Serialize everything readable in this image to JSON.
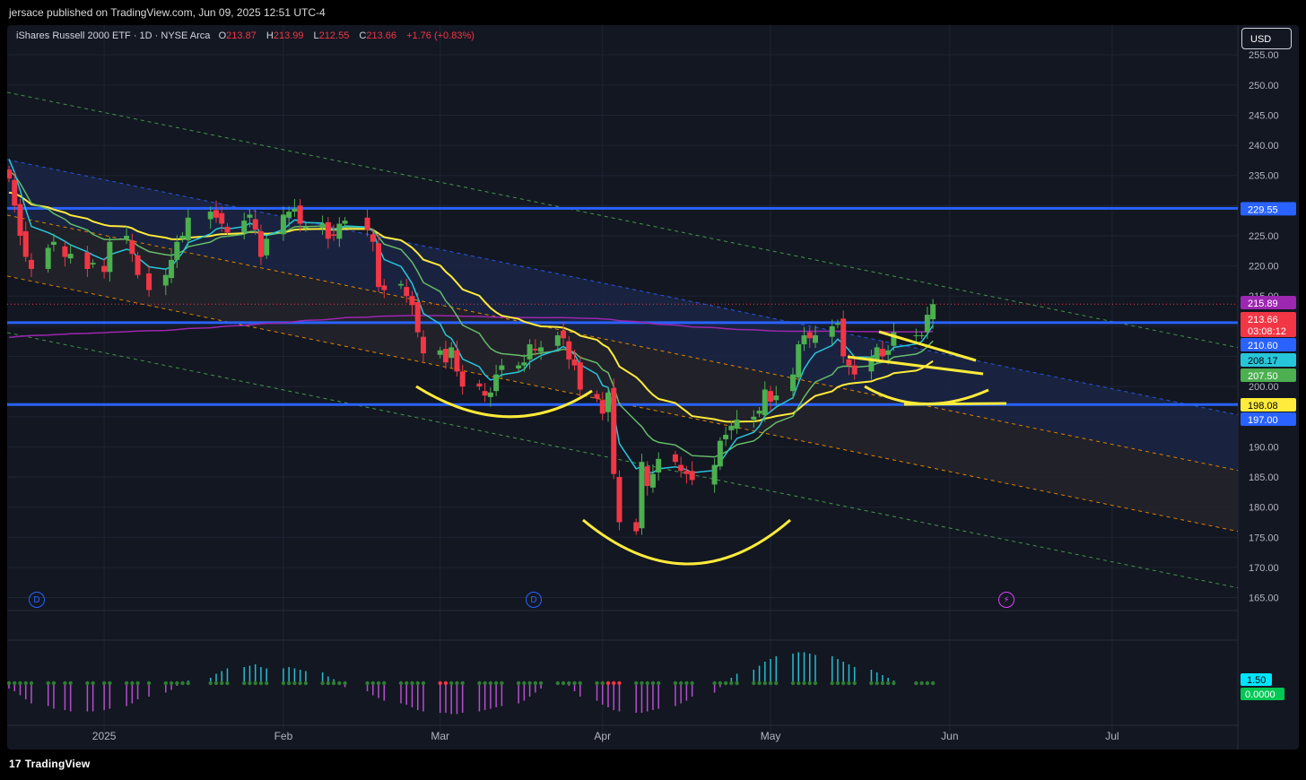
{
  "header": {
    "published": "jersace published on TradingView.com, Jun 09, 2025 12:51 UTC-4"
  },
  "legend": {
    "symbol": "iShares Russell 2000 ETF · 1D · NYSE Arca",
    "o_label": "O",
    "o": "213.87",
    "h_label": "H",
    "h": "213.99",
    "l_label": "L",
    "l": "212.55",
    "c_label": "C",
    "c": "213.66",
    "change": "+1.76 (+0.83%)"
  },
  "currency": "USD",
  "footer": {
    "logo_text": "TradingView"
  },
  "colors": {
    "background": "#131722",
    "up": "#4caf50",
    "down": "#f23645",
    "ema_fast": "#26c6da",
    "ema_mid": "#66bb6a",
    "ema_slow": "#ffeb3b",
    "sma_long": "#9c27b0",
    "level": "#2962ff",
    "channel_outer": "#4caf50",
    "channel_inner": "#ff9800",
    "channel_mid": "#2962ff"
  },
  "events": [
    "D",
    "D"
  ],
  "chart_data": {
    "type": "candlestick",
    "ylim": [
      163,
      258
    ],
    "y_ticks": [
      "255.00",
      "250.00",
      "245.00",
      "240.00",
      "235.00",
      "230.00",
      "225.00",
      "220.00",
      "215.00",
      "210.00",
      "205.00",
      "200.00",
      "195.00",
      "190.00",
      "185.00",
      "180.00",
      "175.00",
      "170.00",
      "165.00"
    ],
    "x_labels": [
      {
        "label": "2025",
        "date": "2025-01-02"
      },
      {
        "label": "Feb",
        "date": "2025-02-03"
      },
      {
        "label": "Mar",
        "date": "2025-03-03"
      },
      {
        "label": "Apr",
        "date": "2025-04-01"
      },
      {
        "label": "May",
        "date": "2025-05-01"
      },
      {
        "label": "Jun",
        "date": "2025-06-02"
      },
      {
        "label": "Jul",
        "date": "2025-07-01"
      }
    ],
    "candles_close": [
      234.5,
      230,
      225,
      221.5,
      219.5,
      223,
      224,
      221.5,
      222,
      219.5,
      220.5,
      219,
      224,
      225,
      222,
      218.5,
      216,
      218.5,
      221,
      224,
      225,
      228,
      229,
      228,
      227,
      225.5,
      227.5,
      228.5,
      226,
      221.5,
      224.5,
      228.5,
      229,
      229.5,
      227,
      226.5,
      227,
      224.5,
      225,
      227,
      227.5,
      226,
      224,
      216.5,
      216,
      217,
      215,
      213.5,
      209,
      205.5,
      206,
      204,
      206.5,
      202.5,
      200,
      200,
      198.5,
      199,
      202,
      203.5,
      203.5,
      204,
      207,
      206,
      206.5,
      208.5,
      208,
      204.5,
      203.5,
      199.5,
      198,
      195.5,
      199,
      185.5,
      177.5,
      176,
      187.5,
      183.5,
      185.5,
      188,
      187.5,
      186,
      185.5,
      184.5,
      187,
      191,
      192,
      193.5,
      194.5,
      195,
      196,
      199.5,
      197.5,
      198.5,
      202,
      207,
      208.5,
      208,
      208.5,
      210,
      210.5,
      205,
      203.5,
      202,
      205,
      206.5,
      205,
      206,
      209,
      208.5,
      208.5,
      211.9,
      213.66
    ],
    "levels": [
      {
        "label": "229.55",
        "value": 229.55,
        "color": "#2962ff"
      },
      {
        "label": "210.60",
        "value": 210.6,
        "color": "#2962ff"
      },
      {
        "label": "197.00",
        "value": 197.0,
        "color": "#2962ff"
      }
    ],
    "price_tags": [
      {
        "label": "215.89",
        "value": 215.89,
        "color": "#9c27b0"
      },
      {
        "label": "213.66",
        "value": 213.66,
        "color": "#f23645",
        "countdown": "03:08:12"
      },
      {
        "label": "208.17",
        "value": 208.17,
        "color": "#26c6da"
      },
      {
        "label": "207.50",
        "value": 207.5,
        "color": "#4caf50"
      },
      {
        "label": "198.08",
        "value": 198.08,
        "color": "#ffeb3b"
      }
    ],
    "indicator": {
      "values": [
        -0.2,
        -0.3,
        -0.45,
        -0.6,
        -0.75,
        -0.85,
        -0.95,
        -1.0,
        -1.05,
        -1.05,
        -1.05,
        -1.0,
        -0.95,
        -0.85,
        -0.75,
        -0.6,
        -0.5,
        -0.35,
        -0.25,
        -0.1,
        0.0,
        0.1,
        0.2,
        0.35,
        0.45,
        0.55,
        0.6,
        0.65,
        0.7,
        0.6,
        0.55,
        0.55,
        0.6,
        0.55,
        0.5,
        0.45,
        0.4,
        0.25,
        0.15,
        0.05,
        -0.15,
        -0.3,
        -0.45,
        -0.55,
        -0.65,
        -0.75,
        -0.8,
        -0.9,
        -1.0,
        -1.05,
        -1.1,
        -1.1,
        -1.15,
        -1.15,
        -1.1,
        -1.05,
        -1.0,
        -0.95,
        -0.9,
        -0.85,
        -0.75,
        -0.65,
        -0.5,
        -0.35,
        -0.2,
        -0.05,
        0.0,
        -0.1,
        -0.3,
        -0.5,
        -0.65,
        -0.8,
        -0.9,
        -1.0,
        -1.05,
        -1.1,
        -1.1,
        -1.05,
        -1.0,
        -0.95,
        -0.85,
        -0.75,
        -0.65,
        -0.5,
        -0.35,
        -0.15,
        0.05,
        0.2,
        0.35,
        0.5,
        0.65,
        0.8,
        0.9,
        1.0,
        1.1,
        1.15,
        1.15,
        1.1,
        1.05,
        1.0,
        0.9,
        0.8,
        0.7,
        0.6,
        0.5,
        0.4,
        0.3,
        0.2,
        0.1,
        0.05,
        0.0,
        0.0,
        0.0
      ],
      "upper_label": "1.50",
      "zero_label": "0.0000"
    }
  }
}
